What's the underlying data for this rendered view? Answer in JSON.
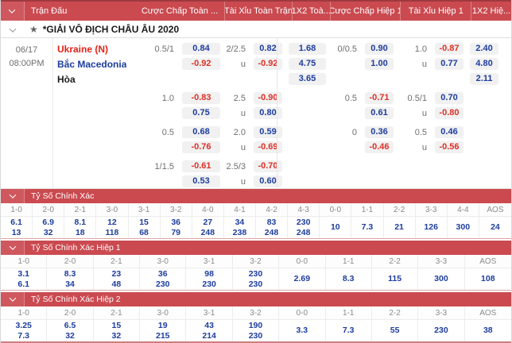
{
  "header": {
    "match_col": "Trận Đấu",
    "cols": [
      "Cược Chấp Toàn ...",
      "Tài Xỉu Toàn Trận",
      "1X2 Toà...",
      "Cược Chấp Hiệp 1",
      "Tài Xỉu Hiệp 1",
      "1X2 Hiệ..."
    ]
  },
  "league": {
    "name": "*GIẢI VÔ ĐỊCH CHÂU ÂU 2020"
  },
  "match": {
    "date": "06/17",
    "time": "08:00PM",
    "teams": {
      "home": "Ukraine (N)",
      "away": "Bắc Macedonia",
      "draw": "Hòa"
    },
    "blocks": [
      {
        "rows": [
          {
            "team_role": "home",
            "cells": [
              "0.5/1",
              "0.84",
              "2/2.5",
              "0.82",
              "1.68",
              "0/0.5",
              "0.90",
              "1.0",
              "-0.87",
              "2.40"
            ]
          },
          {
            "team_role": "away",
            "cells": [
              "",
              "-0.92",
              "u",
              "-0.92",
              "4.75",
              "",
              "1.00",
              "u",
              "0.77",
              "4.80"
            ]
          },
          {
            "team_role": "draw",
            "cells": [
              "",
              "",
              "",
              "",
              "3.65",
              "",
              "",
              "",
              "",
              "2.11"
            ]
          }
        ]
      },
      {
        "rows": [
          {
            "team_role": null,
            "cells": [
              "1.0",
              "-0.83",
              "2.5",
              "-0.90",
              "",
              "0.5",
              "-0.71",
              "0.5/1",
              "0.70",
              ""
            ]
          },
          {
            "team_role": null,
            "cells": [
              "",
              "0.75",
              "u",
              "0.80",
              "",
              "",
              "0.61",
              "u",
              "-0.80",
              ""
            ]
          }
        ]
      },
      {
        "rows": [
          {
            "team_role": null,
            "cells": [
              "0.5",
              "0.68",
              "2.0",
              "0.59",
              "",
              "0",
              "0.36",
              "0.5",
              "0.46",
              ""
            ]
          },
          {
            "team_role": null,
            "cells": [
              "",
              "-0.76",
              "u",
              "-0.69",
              "",
              "",
              "-0.46",
              "u",
              "-0.56",
              ""
            ]
          }
        ]
      },
      {
        "rows": [
          {
            "team_role": null,
            "cells": [
              "1/1.5",
              "-0.61",
              "2.5/3",
              "-0.70",
              "",
              "",
              "",
              "",
              "",
              ""
            ]
          },
          {
            "team_role": null,
            "cells": [
              "",
              "0.53",
              "u",
              "0.60",
              "",
              "",
              "",
              "",
              "",
              ""
            ]
          }
        ]
      }
    ]
  },
  "score_sections": [
    {
      "title": "Tỷ Số Chính Xác",
      "columns": [
        {
          "label": "1-0",
          "values": [
            "6.1",
            "13"
          ]
        },
        {
          "label": "2-0",
          "values": [
            "6.9",
            "32"
          ]
        },
        {
          "label": "2-1",
          "values": [
            "8.1",
            "18"
          ]
        },
        {
          "label": "3-0",
          "values": [
            "12",
            "118"
          ]
        },
        {
          "label": "3-1",
          "values": [
            "15",
            "68"
          ]
        },
        {
          "label": "3-2",
          "values": [
            "36",
            "79"
          ]
        },
        {
          "label": "4-0",
          "values": [
            "27",
            "248"
          ]
        },
        {
          "label": "4-1",
          "values": [
            "34",
            "238"
          ]
        },
        {
          "label": "4-2",
          "values": [
            "83",
            "248"
          ]
        },
        {
          "label": "4-3",
          "values": [
            "230",
            "248"
          ]
        },
        {
          "label": "0-0",
          "values": [
            "10"
          ]
        },
        {
          "label": "1-1",
          "values": [
            "7.3"
          ]
        },
        {
          "label": "2-2",
          "values": [
            "21"
          ]
        },
        {
          "label": "3-3",
          "values": [
            "126"
          ]
        },
        {
          "label": "4-4",
          "values": [
            "300"
          ]
        },
        {
          "label": "AOS",
          "values": [
            "24"
          ]
        }
      ]
    },
    {
      "title": "Tỷ Số Chính Xác Hiệp 1",
      "columns": [
        {
          "label": "1-0",
          "values": [
            "3.1",
            "6.1"
          ]
        },
        {
          "label": "2-0",
          "values": [
            "8.3",
            "34"
          ]
        },
        {
          "label": "2-1",
          "values": [
            "23",
            "48"
          ]
        },
        {
          "label": "3-0",
          "values": [
            "36",
            "230"
          ]
        },
        {
          "label": "3-1",
          "values": [
            "98",
            "230"
          ]
        },
        {
          "label": "3-2",
          "values": [
            "230",
            "230"
          ]
        },
        {
          "label": "0-0",
          "values": [
            "2.69"
          ]
        },
        {
          "label": "1-1",
          "values": [
            "8.3"
          ]
        },
        {
          "label": "2-2",
          "values": [
            "115"
          ]
        },
        {
          "label": "3-3",
          "values": [
            "300"
          ]
        },
        {
          "label": "AOS",
          "values": [
            "108"
          ]
        }
      ]
    },
    {
      "title": "Tỷ Số Chính Xác Hiệp 2",
      "columns": [
        {
          "label": "1-0",
          "values": [
            "3.25",
            "7.3"
          ]
        },
        {
          "label": "2-0",
          "values": [
            "6.5",
            "32"
          ]
        },
        {
          "label": "2-1",
          "values": [
            "15",
            "32"
          ]
        },
        {
          "label": "3-0",
          "values": [
            "19",
            "215"
          ]
        },
        {
          "label": "3-1",
          "values": [
            "43",
            "214"
          ]
        },
        {
          "label": "3-2",
          "values": [
            "190",
            "230"
          ]
        },
        {
          "label": "0-0",
          "values": [
            "3.3"
          ]
        },
        {
          "label": "1-1",
          "values": [
            "7.3"
          ]
        },
        {
          "label": "2-2",
          "values": [
            "55"
          ]
        },
        {
          "label": "3-3",
          "values": [
            "230"
          ]
        },
        {
          "label": "AOS",
          "values": [
            "38"
          ]
        }
      ]
    }
  ],
  "colors": {
    "header_red": "#ca4a50",
    "odds_positive": "#1d3d9e",
    "odds_negative": "#df2f26",
    "team_home": "#e02318",
    "team_away": "#1d3d9e",
    "line_text": "#6e6e6e",
    "pill_bg": "#f1f1f1"
  },
  "icons": {
    "collapse": "chevron-down-icon",
    "favorite": "star-icon"
  }
}
